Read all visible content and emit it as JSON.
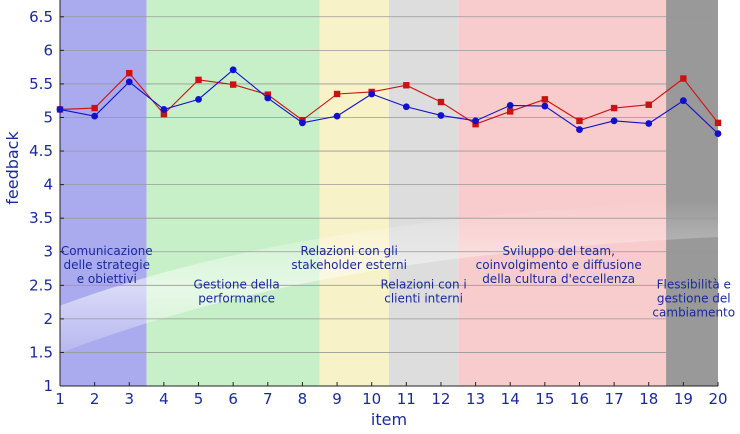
{
  "chart_data": {
    "type": "line",
    "xlabel": "item",
    "ylabel": "feedback",
    "xlim": [
      1,
      20
    ],
    "ylim": [
      1,
      6.75
    ],
    "x_ticks": [
      1,
      2,
      3,
      4,
      5,
      6,
      7,
      8,
      9,
      10,
      11,
      12,
      13,
      14,
      15,
      16,
      17,
      18,
      19,
      20
    ],
    "y_ticks": [
      1,
      1.5,
      2,
      2.5,
      3,
      3.5,
      4,
      4.5,
      5,
      5.5,
      6,
      6.5
    ],
    "grid": "horizontal",
    "x": [
      1,
      2,
      3,
      4,
      5,
      6,
      7,
      8,
      9,
      10,
      11,
      12,
      13,
      14,
      15,
      16,
      17,
      18,
      19,
      20
    ],
    "series": [
      {
        "color": "#cc1111",
        "marker": "square",
        "values": [
          5.12,
          5.14,
          5.66,
          5.05,
          5.56,
          5.49,
          5.34,
          4.96,
          5.35,
          5.38,
          5.48,
          5.23,
          4.9,
          5.09,
          5.27,
          4.95,
          5.14,
          5.19,
          5.58,
          4.92
        ]
      },
      {
        "color": "#1111cc",
        "marker": "circle",
        "values": [
          5.12,
          5.02,
          5.53,
          5.12,
          5.27,
          5.71,
          5.29,
          4.92,
          5.02,
          5.35,
          5.16,
          5.03,
          4.95,
          5.18,
          5.17,
          4.82,
          4.95,
          4.91,
          5.25,
          4.76
        ]
      }
    ],
    "regions": [
      {
        "from": 1,
        "to": 3.5,
        "color": "#aaaaee",
        "label_lines": [
          "Comunicazione",
          "delle strategie",
          "e obiettivi"
        ],
        "label_x": 2.35,
        "label_y": 2.95
      },
      {
        "from": 3.5,
        "to": 8.5,
        "color": "#c8f0c8",
        "label_lines": [
          "Gestione della",
          "performance"
        ],
        "label_x": 6.1,
        "label_y": 2.45
      },
      {
        "from": 8.5,
        "to": 10.5,
        "color": "#f8f2c8",
        "label_lines": [
          "Relazioni con gli",
          "stakeholder esterni"
        ],
        "label_x": 9.35,
        "label_y": 2.95
      },
      {
        "from": 10.5,
        "to": 12.5,
        "color": "#dddddd",
        "label_lines": [
          "Relazioni con i",
          "clienti interni"
        ],
        "label_x": 11.5,
        "label_y": 2.45
      },
      {
        "from": 12.5,
        "to": 18.5,
        "color": "#f8cccc",
        "label_lines": [
          "Sviluppo del team,",
          "coinvolgimento e diffusione",
          "della cultura d'eccellenza"
        ],
        "label_x": 15.4,
        "label_y": 2.95
      },
      {
        "from": 18.5,
        "to": 20,
        "color": "#999999",
        "label_lines": [
          "Flessibilità e",
          "gestione del",
          "cambiamento"
        ],
        "label_x": 19.3,
        "label_y": 2.45
      }
    ]
  }
}
